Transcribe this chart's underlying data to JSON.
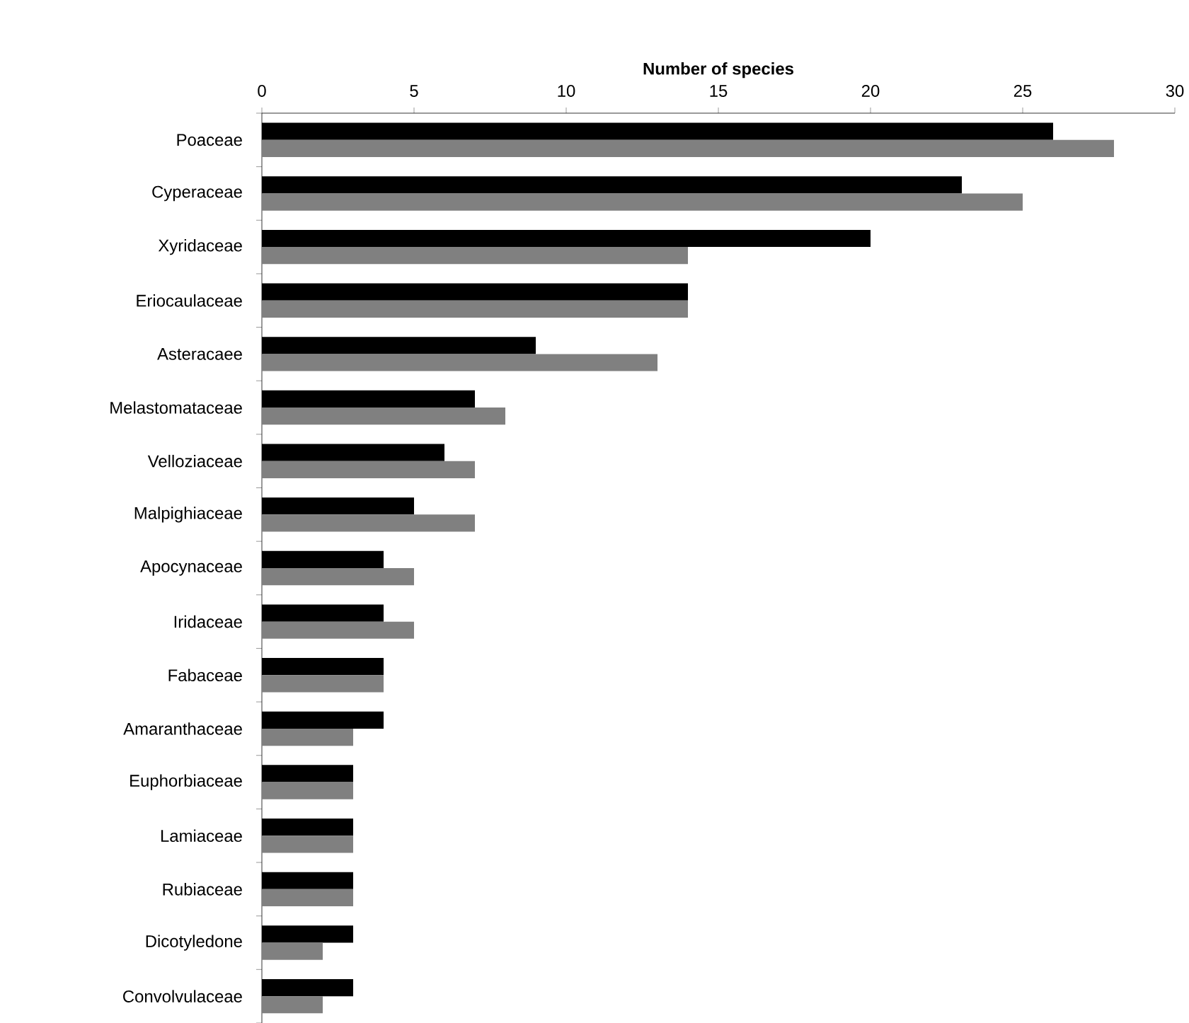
{
  "chart_data": {
    "type": "bar",
    "orientation": "horizontal",
    "xlabel": "Number of species",
    "categories": [
      "Poaceae",
      "Cyperaceae",
      "Xyridaceae",
      "Eriocaulaceae",
      "Asteracaee",
      "Melastomataceae",
      "Velloziaceae",
      "Malpighiaceae",
      "Apocynaceae",
      "Iridaceae",
      "Fabaceae",
      "Amaranthaceae",
      "Euphorbiaceae",
      "Lamiaceae",
      "Rubiaceae",
      "Dicotyledone",
      "Convolvulaceae"
    ],
    "series": [
      {
        "color": "#000000",
        "values": [
          26,
          23,
          20,
          14,
          9,
          7,
          6,
          5,
          4,
          4,
          4,
          4,
          3,
          3,
          3,
          3,
          3
        ]
      },
      {
        "color": "#808080",
        "values": [
          28,
          25,
          14,
          14,
          13,
          8,
          7,
          7,
          5,
          5,
          4,
          3,
          3,
          3,
          3,
          2,
          2
        ]
      }
    ],
    "xlim": [
      0,
      30
    ],
    "xticks": [
      0,
      5,
      10,
      15,
      20,
      25,
      30
    ]
  }
}
